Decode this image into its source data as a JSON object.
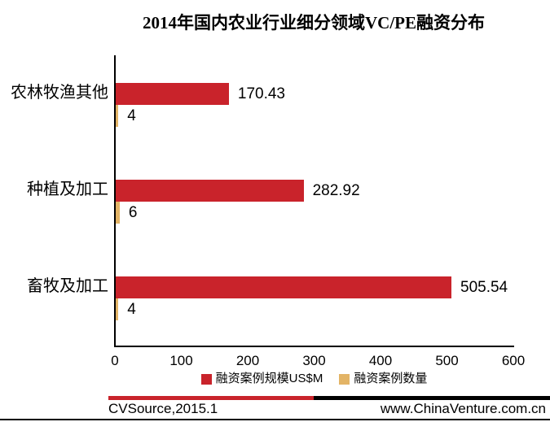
{
  "title": "2014年国内农业行业细分领域VC/PE融资分布",
  "chart_data": {
    "type": "bar",
    "orientation": "horizontal",
    "title": "2014年国内农业行业细分领域VC/PE融资分布",
    "categories": [
      "农林牧渔其他",
      "种植及加工",
      "畜牧及加工"
    ],
    "series": [
      {
        "name": "融资案例规模US$M",
        "color": "#C9232B",
        "values": [
          170.43,
          282.92,
          505.54
        ]
      },
      {
        "name": "融资案例数量",
        "color": "#E3B466",
        "values": [
          4,
          6,
          4
        ]
      }
    ],
    "xlabel": "",
    "ylabel": "",
    "xlim": [
      0,
      600
    ],
    "x_ticks": [
      0,
      100,
      200,
      300,
      400,
      500,
      600
    ],
    "grid": false,
    "legend_position": "bottom",
    "value_labels": true
  },
  "footer": {
    "left": "CVSource,2015.1",
    "right": "www.ChinaVenture.com.cn",
    "accent_red": "#C9232B",
    "accent_black": "#000000"
  }
}
